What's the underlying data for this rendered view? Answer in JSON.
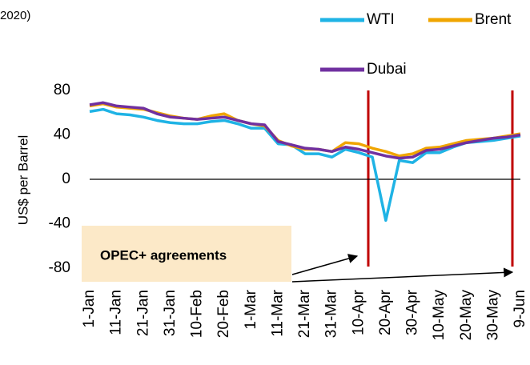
{
  "chart_data": {
    "type": "line",
    "title": "2020)",
    "y_label": "US$ per Barrel",
    "annotation": "OPEC+ agreements",
    "categories": [
      "1-Jan",
      null,
      "11-Jan",
      null,
      "21-Jan",
      null,
      "31-Jan",
      null,
      "10-Feb",
      null,
      "20-Feb",
      null,
      "1-Mar",
      null,
      "11-Mar",
      null,
      "21-Mar",
      null,
      "31-Mar",
      null,
      "10-Apr",
      null,
      "20-Apr",
      null,
      "30-Apr",
      null,
      "10-May",
      null,
      "20-May",
      null,
      "30-May",
      null,
      "9-Jun"
    ],
    "series": [
      {
        "name": "WTI",
        "color": "#1fb3e5",
        "values": [
          61,
          63,
          59,
          58,
          56,
          53,
          51,
          50,
          50,
          52,
          53,
          50,
          46,
          46,
          32,
          31,
          23,
          23,
          20,
          27,
          24,
          20,
          -37,
          17,
          15,
          24,
          24,
          29,
          33,
          34,
          35,
          37,
          39
        ]
      },
      {
        "name": "Brent",
        "color": "#f0a500",
        "values": [
          66,
          68,
          65,
          64,
          63,
          60,
          57,
          55,
          54,
          57,
          59,
          53,
          50,
          48,
          35,
          30,
          27,
          27,
          25,
          33,
          32,
          28,
          25,
          21,
          23,
          28,
          29,
          32,
          35,
          36,
          37,
          39,
          41
        ]
      },
      {
        "name": "Dubai",
        "color": "#7030a0",
        "values": [
          67,
          69,
          66,
          65,
          64,
          59,
          56,
          55,
          54,
          55,
          56,
          53,
          50,
          49,
          34,
          31,
          28,
          27,
          25,
          29,
          27,
          24,
          21,
          19,
          20,
          26,
          27,
          30,
          33,
          35,
          37,
          38,
          40
        ]
      }
    ],
    "ylim": [
      -80,
      80
    ],
    "yticks": [
      -80,
      -40,
      0,
      40,
      80
    ]
  }
}
